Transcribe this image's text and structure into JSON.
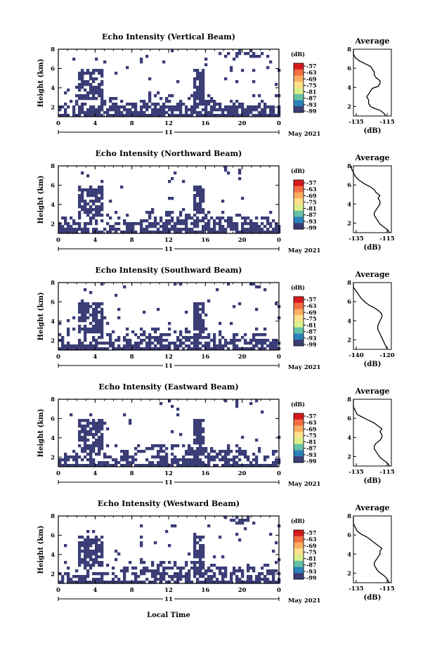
{
  "figure": {
    "bottom_xlabel": "Local Time"
  },
  "chart_data": [
    {
      "type": "heatmap",
      "title": "Echo Intensity (Vertical Beam)",
      "ylabel": "Height (km)",
      "y_ticks": [
        "2",
        "4",
        "6",
        "8"
      ],
      "x_ticks": [
        "0",
        "4",
        "8",
        "12",
        "16",
        "20",
        "0"
      ],
      "day_label": "11",
      "month_label": "May 2021",
      "xlim_hours": [
        0,
        24
      ],
      "ylim_km": [
        1,
        8
      ],
      "colorbar": {
        "unit": "(dB)",
        "ticks": [
          "-57",
          "-63",
          "-69",
          "-75",
          "-81",
          "-87",
          "-93",
          "-99"
        ]
      },
      "fill_color": "#3b3d77",
      "average_profile": {
        "title": "Average",
        "xlabel": "(dB)",
        "x_ticks": [
          "-135",
          "-115"
        ],
        "y_ticks": [
          "2",
          "4",
          "6",
          "8"
        ],
        "xlim": [
          -135,
          -115
        ],
        "ylim": [
          1,
          8
        ],
        "points": [
          [
            -118,
            1.0
          ],
          [
            -119,
            1.3
          ],
          [
            -121,
            1.6
          ],
          [
            -124,
            1.8
          ],
          [
            -126,
            2.0
          ],
          [
            -127,
            2.3
          ],
          [
            -127,
            2.7
          ],
          [
            -128,
            3.0
          ],
          [
            -127,
            3.3
          ],
          [
            -126,
            3.6
          ],
          [
            -125,
            3.9
          ],
          [
            -122,
            4.1
          ],
          [
            -121,
            4.4
          ],
          [
            -121,
            4.7
          ],
          [
            -123,
            5.0
          ],
          [
            -124,
            5.3
          ],
          [
            -124,
            5.6
          ],
          [
            -125,
            5.9
          ],
          [
            -126,
            6.2
          ],
          [
            -129,
            6.5
          ],
          [
            -132,
            6.8
          ],
          [
            -134,
            7.1
          ],
          [
            -135,
            7.5
          ],
          [
            -135,
            8.0
          ]
        ]
      }
    },
    {
      "type": "heatmap",
      "title": "Echo Intensity (Northward Beam)",
      "ylabel": "Height (km)",
      "y_ticks": [
        "2",
        "4",
        "6",
        "8"
      ],
      "x_ticks": [
        "0",
        "4",
        "8",
        "12",
        "16",
        "20",
        "0"
      ],
      "day_label": "11",
      "month_label": "May 2021",
      "xlim_hours": [
        0,
        24
      ],
      "ylim_km": [
        1,
        8
      ],
      "colorbar": {
        "unit": "(dB)",
        "ticks": [
          "-57",
          "-63",
          "-69",
          "-75",
          "-81",
          "-87",
          "-93",
          "-99"
        ]
      },
      "fill_color": "#3b3d77",
      "average_profile": {
        "title": "Average",
        "xlabel": "(dB)",
        "x_ticks": [
          "-135",
          "-115"
        ],
        "y_ticks": [
          "2",
          "4",
          "6",
          "8"
        ],
        "xlim": [
          -135,
          -115
        ],
        "ylim": [
          1,
          8
        ],
        "points": [
          [
            -116,
            1.0
          ],
          [
            -117,
            1.3
          ],
          [
            -119,
            1.6
          ],
          [
            -121,
            1.9
          ],
          [
            -122,
            2.2
          ],
          [
            -123,
            2.5
          ],
          [
            -124,
            2.8
          ],
          [
            -124,
            3.1
          ],
          [
            -123,
            3.4
          ],
          [
            -122,
            3.7
          ],
          [
            -121,
            4.0
          ],
          [
            -121,
            4.3
          ],
          [
            -122,
            4.6
          ],
          [
            -121,
            4.9
          ],
          [
            -123,
            5.2
          ],
          [
            -124,
            5.5
          ],
          [
            -126,
            5.8
          ],
          [
            -129,
            6.1
          ],
          [
            -132,
            6.5
          ],
          [
            -134,
            6.9
          ],
          [
            -135,
            7.3
          ],
          [
            -136,
            7.7
          ],
          [
            -136,
            8.0
          ]
        ]
      }
    },
    {
      "type": "heatmap",
      "title": "Echo Intensity (Southward Beam)",
      "ylabel": "Height (km)",
      "y_ticks": [
        "2",
        "4",
        "6",
        "8"
      ],
      "x_ticks": [
        "0",
        "4",
        "8",
        "12",
        "16",
        "20",
        "0"
      ],
      "day_label": "11",
      "month_label": "May 2021",
      "xlim_hours": [
        0,
        24
      ],
      "ylim_km": [
        1,
        8
      ],
      "colorbar": {
        "unit": "(dB)",
        "ticks": [
          "-57",
          "-63",
          "-69",
          "-75",
          "-81",
          "-87",
          "-93",
          "-99"
        ]
      },
      "fill_color": "#3b3d77",
      "average_profile": {
        "title": "Average",
        "xlabel": "(dB)",
        "x_ticks": [
          "-140",
          "-120"
        ],
        "y_ticks": [
          "2",
          "4",
          "6",
          "8"
        ],
        "xlim": [
          -140,
          -112
        ],
        "ylim": [
          1,
          8
        ],
        "points": [
          [
            -115,
            1.0
          ],
          [
            -116,
            1.3
          ],
          [
            -117,
            1.6
          ],
          [
            -118,
            1.9
          ],
          [
            -119,
            2.2
          ],
          [
            -120,
            2.5
          ],
          [
            -121,
            2.8
          ],
          [
            -122,
            3.1
          ],
          [
            -122,
            3.5
          ],
          [
            -121,
            3.8
          ],
          [
            -120,
            4.1
          ],
          [
            -119,
            4.4
          ],
          [
            -119,
            4.7
          ],
          [
            -121,
            5.0
          ],
          [
            -124,
            5.3
          ],
          [
            -128,
            5.6
          ],
          [
            -131,
            5.9
          ],
          [
            -134,
            6.3
          ],
          [
            -136,
            6.7
          ],
          [
            -138,
            7.1
          ],
          [
            -140,
            7.5
          ],
          [
            -140,
            8.0
          ]
        ]
      }
    },
    {
      "type": "heatmap",
      "title": "Echo Intensity (Eastward Beam)",
      "ylabel": "Height (km)",
      "y_ticks": [
        "2",
        "4",
        "6",
        "8"
      ],
      "x_ticks": [
        "0",
        "4",
        "8",
        "12",
        "16",
        "20",
        "0"
      ],
      "day_label": "11",
      "month_label": "May 2021",
      "xlim_hours": [
        0,
        24
      ],
      "ylim_km": [
        1,
        8
      ],
      "colorbar": {
        "unit": "(dB)",
        "ticks": [
          "-57",
          "-63",
          "-69",
          "-75",
          "-81",
          "-87",
          "-93",
          "-99"
        ]
      },
      "fill_color": "#3b3d77",
      "average_profile": {
        "title": "Average",
        "xlabel": "(dB)",
        "x_ticks": [
          "-135",
          "-115"
        ],
        "y_ticks": [
          "2",
          "4",
          "6",
          "8"
        ],
        "xlim": [
          -135,
          -115
        ],
        "ylim": [
          1,
          8
        ],
        "points": [
          [
            -116,
            1.0
          ],
          [
            -117,
            1.3
          ],
          [
            -119,
            1.6
          ],
          [
            -121,
            1.9
          ],
          [
            -122,
            2.2
          ],
          [
            -123,
            2.5
          ],
          [
            -124,
            2.8
          ],
          [
            -124,
            3.1
          ],
          [
            -123,
            3.4
          ],
          [
            -121,
            3.7
          ],
          [
            -120,
            4.0
          ],
          [
            -120,
            4.3
          ],
          [
            -121,
            4.6
          ],
          [
            -120,
            4.9
          ],
          [
            -122,
            5.2
          ],
          [
            -124,
            5.5
          ],
          [
            -127,
            5.8
          ],
          [
            -130,
            6.1
          ],
          [
            -133,
            6.4
          ],
          [
            -134,
            6.8
          ],
          [
            -135,
            7.2
          ],
          [
            -135,
            7.6
          ],
          [
            -135,
            8.0
          ]
        ]
      }
    },
    {
      "type": "heatmap",
      "title": "Echo Intensity (Westward Beam)",
      "ylabel": "Height (km)",
      "y_ticks": [
        "2",
        "4",
        "6",
        "8"
      ],
      "x_ticks": [
        "0",
        "4",
        "8",
        "12",
        "16",
        "20",
        "0"
      ],
      "day_label": "11",
      "month_label": "May 2021",
      "xlim_hours": [
        0,
        24
      ],
      "ylim_km": [
        1,
        8
      ],
      "colorbar": {
        "unit": "(dB)",
        "ticks": [
          "-57",
          "-63",
          "-69",
          "-75",
          "-81",
          "-87",
          "-93",
          "-99"
        ]
      },
      "fill_color": "#3b3d77",
      "average_profile": {
        "title": "Average",
        "xlabel": "(dB)",
        "x_ticks": [
          "-135",
          "-115"
        ],
        "y_ticks": [
          "2",
          "4",
          "6",
          "8"
        ],
        "xlim": [
          -135,
          -115
        ],
        "ylim": [
          1,
          8
        ],
        "points": [
          [
            -116,
            1.0
          ],
          [
            -117,
            1.3
          ],
          [
            -118,
            1.6
          ],
          [
            -120,
            1.9
          ],
          [
            -122,
            2.2
          ],
          [
            -123,
            2.5
          ],
          [
            -124,
            2.8
          ],
          [
            -124,
            3.1
          ],
          [
            -123,
            3.4
          ],
          [
            -122,
            3.7
          ],
          [
            -121,
            4.0
          ],
          [
            -121,
            4.3
          ],
          [
            -120,
            4.6
          ],
          [
            -122,
            4.9
          ],
          [
            -124,
            5.2
          ],
          [
            -126,
            5.5
          ],
          [
            -128,
            5.8
          ],
          [
            -131,
            6.1
          ],
          [
            -133,
            6.4
          ],
          [
            -134,
            6.8
          ],
          [
            -135,
            7.2
          ],
          [
            -135,
            7.6
          ],
          [
            -135,
            8.0
          ]
        ]
      }
    }
  ]
}
